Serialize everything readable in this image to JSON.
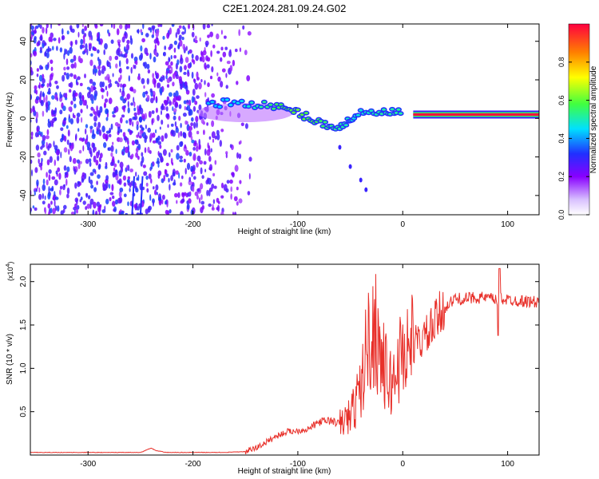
{
  "figure": {
    "title": "C2E1.2024.281.09.24.G02"
  },
  "chart_data": [
    {
      "type": "heatmap",
      "xlabel": "Height of straight line (km)",
      "ylabel": "Frequency (Hz)",
      "xlim": [
        -355,
        130
      ],
      "ylim": [
        -50,
        49
      ],
      "xticks": [
        -300,
        -200,
        -100,
        0,
        100
      ],
      "yticks": [
        -40,
        -20,
        0,
        20,
        40
      ],
      "colorbar": {
        "label": "Normalized spectral amplitude",
        "range": [
          0,
          1
        ],
        "ticks": [
          0.0,
          0.2,
          0.4,
          0.6,
          0.8
        ],
        "tick_labels": [
          "0.0",
          "0.2",
          "0.4",
          "0.6",
          "0.8"
        ],
        "colormap": [
          "#ffffff",
          "#8800ff",
          "#2030ff",
          "#00e0ff",
          "#40ff40",
          "#ffff00",
          "#ff8000",
          "#ff0040"
        ]
      },
      "features": {
        "carrier_line": {
          "x": [
            10,
            130
          ],
          "freq": 2,
          "amplitude": 1.0
        },
        "dispersed_track": [
          {
            "x": -185,
            "freq": 8,
            "amplitude": 0.4
          },
          {
            "x": -150,
            "freq": 8,
            "amplitude": 0.45
          },
          {
            "x": -120,
            "freq": 6,
            "amplitude": 0.55
          },
          {
            "x": -100,
            "freq": 3,
            "amplitude": 0.6
          },
          {
            "x": -80,
            "freq": -2,
            "amplitude": 0.55
          },
          {
            "x": -60,
            "freq": -5,
            "amplitude": 0.5
          },
          {
            "x": -45,
            "freq": 2,
            "amplitude": 0.45
          },
          {
            "x": -20,
            "freq": 3,
            "amplitude": 0.5
          },
          {
            "x": 0,
            "freq": 3,
            "amplitude": 0.5
          }
        ],
        "tail_track": [
          {
            "x": -60,
            "freq": -15
          },
          {
            "x": -50,
            "freq": -25
          },
          {
            "x": -40,
            "freq": -32
          },
          {
            "x": -35,
            "freq": -37
          }
        ],
        "noise_region": [
          -355,
          -145
        ]
      }
    },
    {
      "type": "line",
      "xlabel": "Height of straight line (km)",
      "ylabel": "SNR (10 * v/v)",
      "y_multiplier": "(x10",
      "y_multiplier_exp": "4",
      "y_multiplier_close": ")",
      "xlim": [
        -355,
        130
      ],
      "ylim": [
        0,
        2.2
      ],
      "xticks": [
        -300,
        -200,
        -100,
        0,
        100
      ],
      "yticks": [
        0.5,
        1.0,
        1.5,
        2.0
      ],
      "ytick_labels": [
        "0.5",
        "1.0",
        "1.5",
        "2.0"
      ],
      "series": [
        {
          "color": "#e8302a",
          "x": [
            -355,
            -250,
            -240,
            -235,
            -225,
            -200,
            -170,
            -150,
            -140,
            -130,
            -120,
            -110,
            -100,
            -90,
            -80,
            -70,
            -60,
            -50,
            -45,
            -40,
            -35,
            -30,
            -25,
            -20,
            -15,
            -10,
            -5,
            0,
            5,
            10,
            15,
            20,
            25,
            30,
            40,
            50,
            60,
            70,
            80,
            85,
            90,
            92,
            95,
            100,
            110,
            120,
            130
          ],
          "y": [
            0.03,
            0.03,
            0.08,
            0.05,
            0.03,
            0.03,
            0.03,
            0.04,
            0.08,
            0.15,
            0.22,
            0.27,
            0.28,
            0.3,
            0.38,
            0.4,
            0.36,
            0.45,
            0.6,
            0.75,
            1.2,
            1.4,
            1.45,
            1.1,
            0.9,
            0.8,
            1.05,
            1.2,
            1.25,
            1.28,
            1.3,
            1.35,
            1.4,
            1.5,
            1.7,
            1.8,
            1.8,
            1.82,
            1.81,
            1.8,
            1.78,
            1.85,
            1.8,
            1.79,
            1.78,
            1.77,
            1.76
          ]
        }
      ]
    }
  ]
}
